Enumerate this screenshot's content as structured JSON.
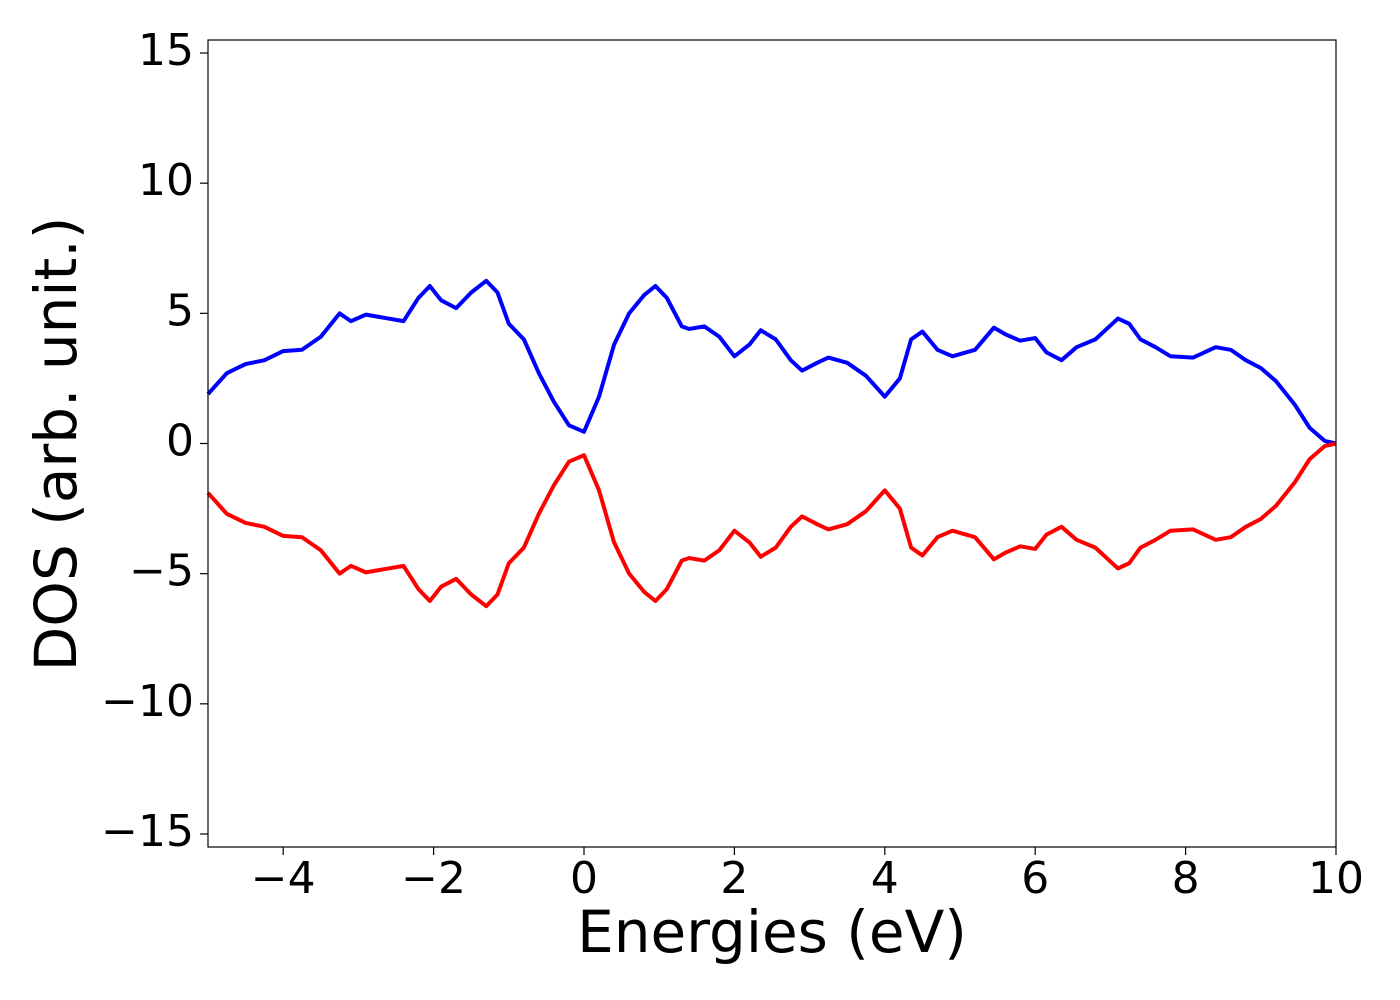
{
  "chart_data": {
    "type": "line",
    "x_label": "Energies (eV)",
    "y_label": "DOS (arb. unit.)",
    "x": [
      -5,
      -4.75,
      -4.5,
      -4.25,
      -4,
      -3.75,
      -3.5,
      -3.25,
      -3.1,
      -2.9,
      -2.6,
      -2.4,
      -2.2,
      -2.05,
      -1.9,
      -1.7,
      -1.5,
      -1.3,
      -1.15,
      -1.0,
      -0.8,
      -0.6,
      -0.4,
      -0.2,
      0,
      0.2,
      0.4,
      0.6,
      0.8,
      0.95,
      1.1,
      1.3,
      1.4,
      1.6,
      1.8,
      2.0,
      2.2,
      2.35,
      2.55,
      2.75,
      2.9,
      3.1,
      3.25,
      3.5,
      3.75,
      4.0,
      4.2,
      4.35,
      4.5,
      4.7,
      4.9,
      5.2,
      5.45,
      5.6,
      5.8,
      6.0,
      6.15,
      6.35,
      6.55,
      6.8,
      7.1,
      7.25,
      7.4,
      7.6,
      7.8,
      8.1,
      8.4,
      8.6,
      8.8,
      9.0,
      9.2,
      9.45,
      9.65,
      9.85,
      10
    ],
    "series": [
      {
        "color": "#0000ff",
        "values": [
          1.9,
          2.7,
          3.05,
          3.2,
          3.55,
          3.6,
          4.1,
          5.0,
          4.7,
          4.95,
          4.8,
          4.7,
          5.6,
          6.05,
          5.5,
          5.2,
          5.8,
          6.25,
          5.8,
          4.6,
          4.0,
          2.7,
          1.6,
          0.7,
          0.45,
          1.8,
          3.8,
          5.0,
          5.7,
          6.05,
          5.6,
          4.5,
          4.4,
          4.5,
          4.1,
          3.35,
          3.8,
          4.35,
          4.0,
          3.2,
          2.8,
          3.1,
          3.3,
          3.1,
          2.6,
          1.8,
          2.5,
          4.0,
          4.3,
          3.6,
          3.35,
          3.6,
          4.45,
          4.2,
          3.95,
          4.05,
          3.5,
          3.2,
          3.7,
          4.0,
          4.8,
          4.6,
          4.0,
          3.7,
          3.35,
          3.3,
          3.7,
          3.6,
          3.2,
          2.9,
          2.4,
          1.5,
          0.6,
          0.1,
          0.0
        ]
      },
      {
        "color": "#ff0000",
        "values": [
          -1.9,
          -2.7,
          -3.05,
          -3.2,
          -3.55,
          -3.6,
          -4.1,
          -5.0,
          -4.7,
          -4.95,
          -4.8,
          -4.7,
          -5.6,
          -6.05,
          -5.5,
          -5.2,
          -5.8,
          -6.25,
          -5.8,
          -4.6,
          -4.0,
          -2.7,
          -1.6,
          -0.7,
          -0.45,
          -1.8,
          -3.8,
          -5.0,
          -5.7,
          -6.05,
          -5.6,
          -4.5,
          -4.4,
          -4.5,
          -4.1,
          -3.35,
          -3.8,
          -4.35,
          -4.0,
          -3.2,
          -2.8,
          -3.1,
          -3.3,
          -3.1,
          -2.6,
          -1.8,
          -2.5,
          -4.0,
          -4.3,
          -3.6,
          -3.35,
          -3.6,
          -4.45,
          -4.2,
          -3.95,
          -4.05,
          -3.5,
          -3.2,
          -3.7,
          -4.0,
          -4.8,
          -4.6,
          -4.0,
          -3.7,
          -3.35,
          -3.3,
          -3.7,
          -3.6,
          -3.2,
          -2.9,
          -2.4,
          -1.5,
          -0.6,
          -0.1,
          0.0
        ]
      }
    ],
    "xlim": [
      -5,
      10
    ],
    "xticks": [
      {
        "value": -4,
        "label": "−4"
      },
      {
        "value": -2,
        "label": "−2"
      },
      0,
      2,
      4,
      6,
      8,
      10
    ],
    "ylim": [
      -15.5,
      15.5
    ],
    "yticks": [
      {
        "value": -15,
        "label": "−15"
      },
      {
        "value": -10,
        "label": "−10"
      },
      {
        "value": -5,
        "label": "−5"
      },
      0,
      5,
      10,
      15
    ],
    "grid": false
  }
}
